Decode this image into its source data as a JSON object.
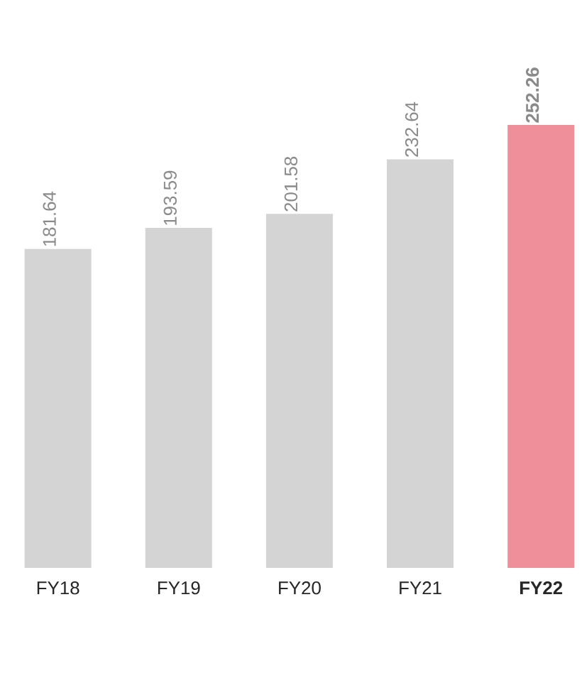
{
  "chart_data": {
    "type": "bar",
    "categories": [
      "FY18",
      "FY19",
      "FY20",
      "FY21",
      "FY22"
    ],
    "values": [
      181.64,
      193.59,
      201.58,
      232.64,
      252.26
    ],
    "colors": [
      "#d4d4d4",
      "#d4d4d4",
      "#d4d4d4",
      "#d4d4d4",
      "#ef8f9a"
    ],
    "data_labels": true
  }
}
